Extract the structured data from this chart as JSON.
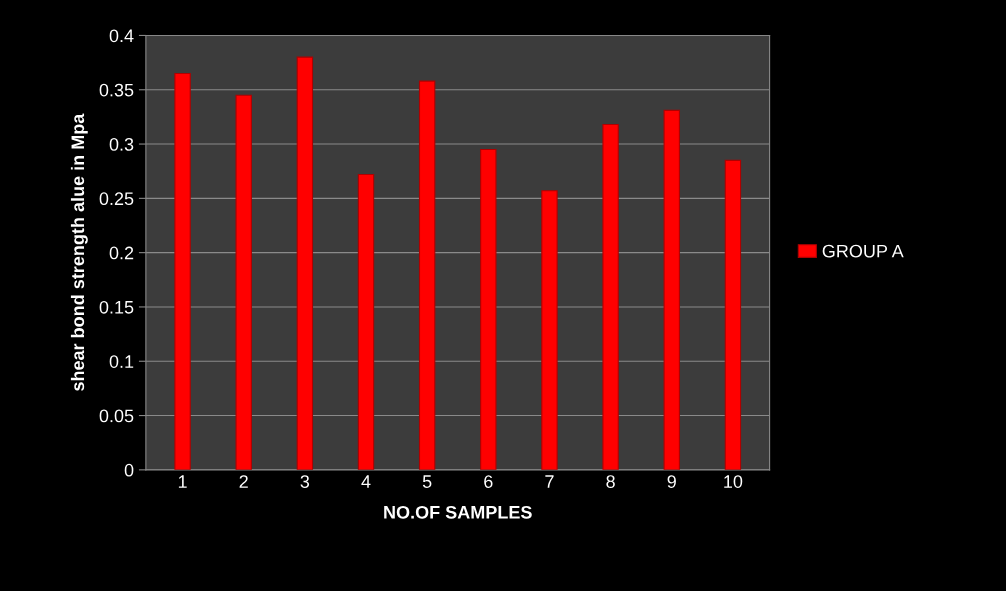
{
  "chart_data": {
    "type": "bar",
    "xlabel": "NO.OF SAMPLES",
    "ylabel": "shear bond strength alue in Mpa",
    "categories": [
      "1",
      "2",
      "3",
      "4",
      "5",
      "6",
      "7",
      "8",
      "9",
      "10"
    ],
    "series": [
      {
        "name": "GROUP A",
        "color": "#ff0000",
        "values": [
          0.365,
          0.345,
          0.38,
          0.272,
          0.358,
          0.295,
          0.257,
          0.318,
          0.331,
          0.285
        ]
      }
    ],
    "ylim": [
      0,
      0.4
    ],
    "yticks": [
      0,
      0.05,
      0.1,
      0.15,
      0.2,
      0.25,
      0.3,
      0.35,
      0.4
    ],
    "grid": "y",
    "legend": "right"
  }
}
